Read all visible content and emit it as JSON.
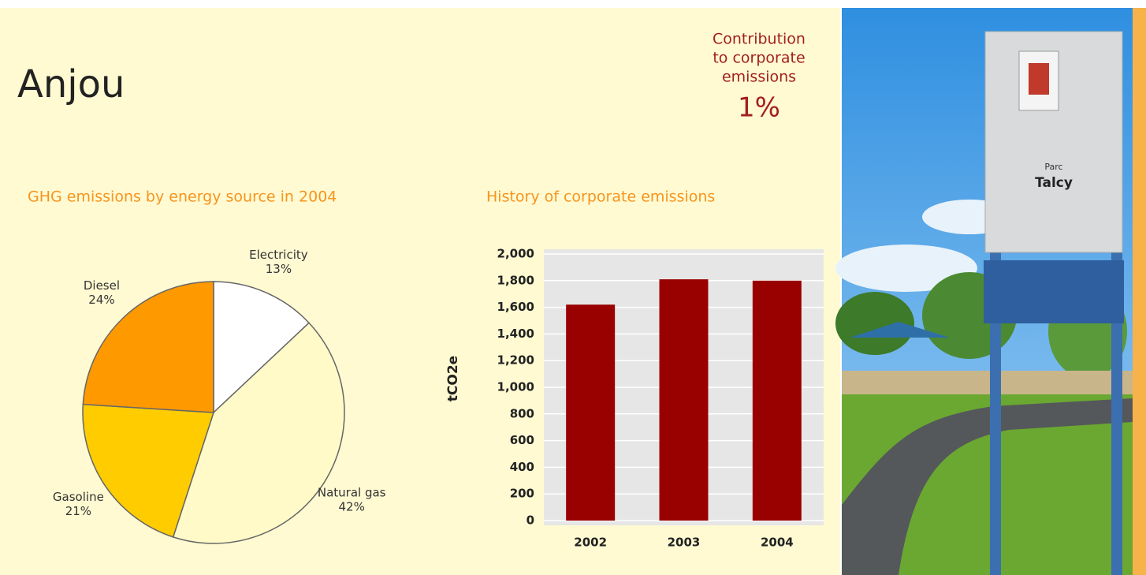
{
  "header": {
    "title": "Anjou",
    "contribution_lines": [
      "Contribution",
      "to corporate",
      "emissions"
    ],
    "contribution_value": "1%"
  },
  "photo": {
    "sign_lines": [
      "Parc",
      "Talcy"
    ]
  },
  "chart_data": [
    {
      "type": "pie",
      "title": "GHG emissions by energy source in 2004",
      "categories": [
        "Electricity",
        "Natural gas",
        "Gasoline",
        "Diesel"
      ],
      "values": [
        13,
        42,
        21,
        24
      ],
      "value_labels": [
        "13%",
        "42%",
        "21%",
        "24%"
      ],
      "colors": [
        "#ffffff",
        "#fffac8",
        "#ffcc00",
        "#ff9900"
      ]
    },
    {
      "type": "bar",
      "title": "History of corporate emissions",
      "y_label": "tCO2e",
      "categories": [
        "2002",
        "2003",
        "2004"
      ],
      "values": [
        1620,
        1810,
        1800
      ],
      "color": "#990000",
      "ylim": [
        0,
        2000
      ],
      "yticks": [
        0,
        200,
        400,
        600,
        800,
        {
          "value": 1000,
          "label": "1,000"
        },
        {
          "value": 1200,
          "label": "1,200"
        },
        {
          "value": 1400,
          "label": "1,400"
        },
        {
          "value": 1600,
          "label": "1,600"
        },
        {
          "value": 1800,
          "label": "1,800"
        },
        {
          "value": 2000,
          "label": "2,000"
        }
      ],
      "grid": true
    }
  ]
}
